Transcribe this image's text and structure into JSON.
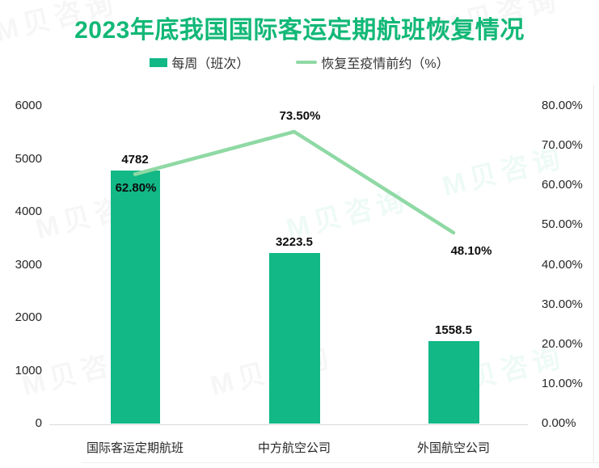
{
  "title": "2023年底我国国际客运定期航班恢复情况",
  "legend": [
    {
      "label": "每周（班次）",
      "type": "bar",
      "color": "#12b886"
    },
    {
      "label": "恢复至疫情前约（%）",
      "type": "line",
      "color": "#8fd9a4"
    }
  ],
  "chart_data": {
    "type": "bar+line",
    "title": "2023年底我国国际客运定期航班恢复情况",
    "categories": [
      "国际客运定期航班",
      "中方航空公司",
      "外国航空公司"
    ],
    "series": [
      {
        "name": "每周（班次）",
        "type": "bar",
        "axis": "left",
        "values": [
          4782,
          3223.5,
          1558.5
        ],
        "labels": [
          "4782",
          "3223.5",
          "1558.5"
        ],
        "color": "#12b886"
      },
      {
        "name": "恢复至疫情前约（%）",
        "type": "line",
        "axis": "right",
        "values": [
          62.8,
          73.5,
          48.1
        ],
        "labels": [
          "62.80%",
          "73.50%",
          "48.10%"
        ],
        "color": "#8fd9a4"
      }
    ],
    "left_axis": {
      "min": 0,
      "max": 6000,
      "ticks": [
        "6000",
        "5000",
        "4000",
        "3000",
        "2000",
        "1000",
        "0"
      ]
    },
    "right_axis": {
      "min": "0.00%",
      "max": "80.00%",
      "ticks": [
        "80.00%",
        "70.00%",
        "60.00%",
        "50.00%",
        "40.00%",
        "30.00%",
        "20.00%",
        "10.00%",
        "0.00%"
      ]
    },
    "grid": false,
    "legend_position": "top"
  },
  "colors": {
    "title": "#12b877",
    "bar": "#12b886",
    "line": "#8fd9a4",
    "axis_text": "#262626",
    "baseline": "#d9d9d9"
  },
  "watermark": {
    "text": "M贝咨询"
  }
}
